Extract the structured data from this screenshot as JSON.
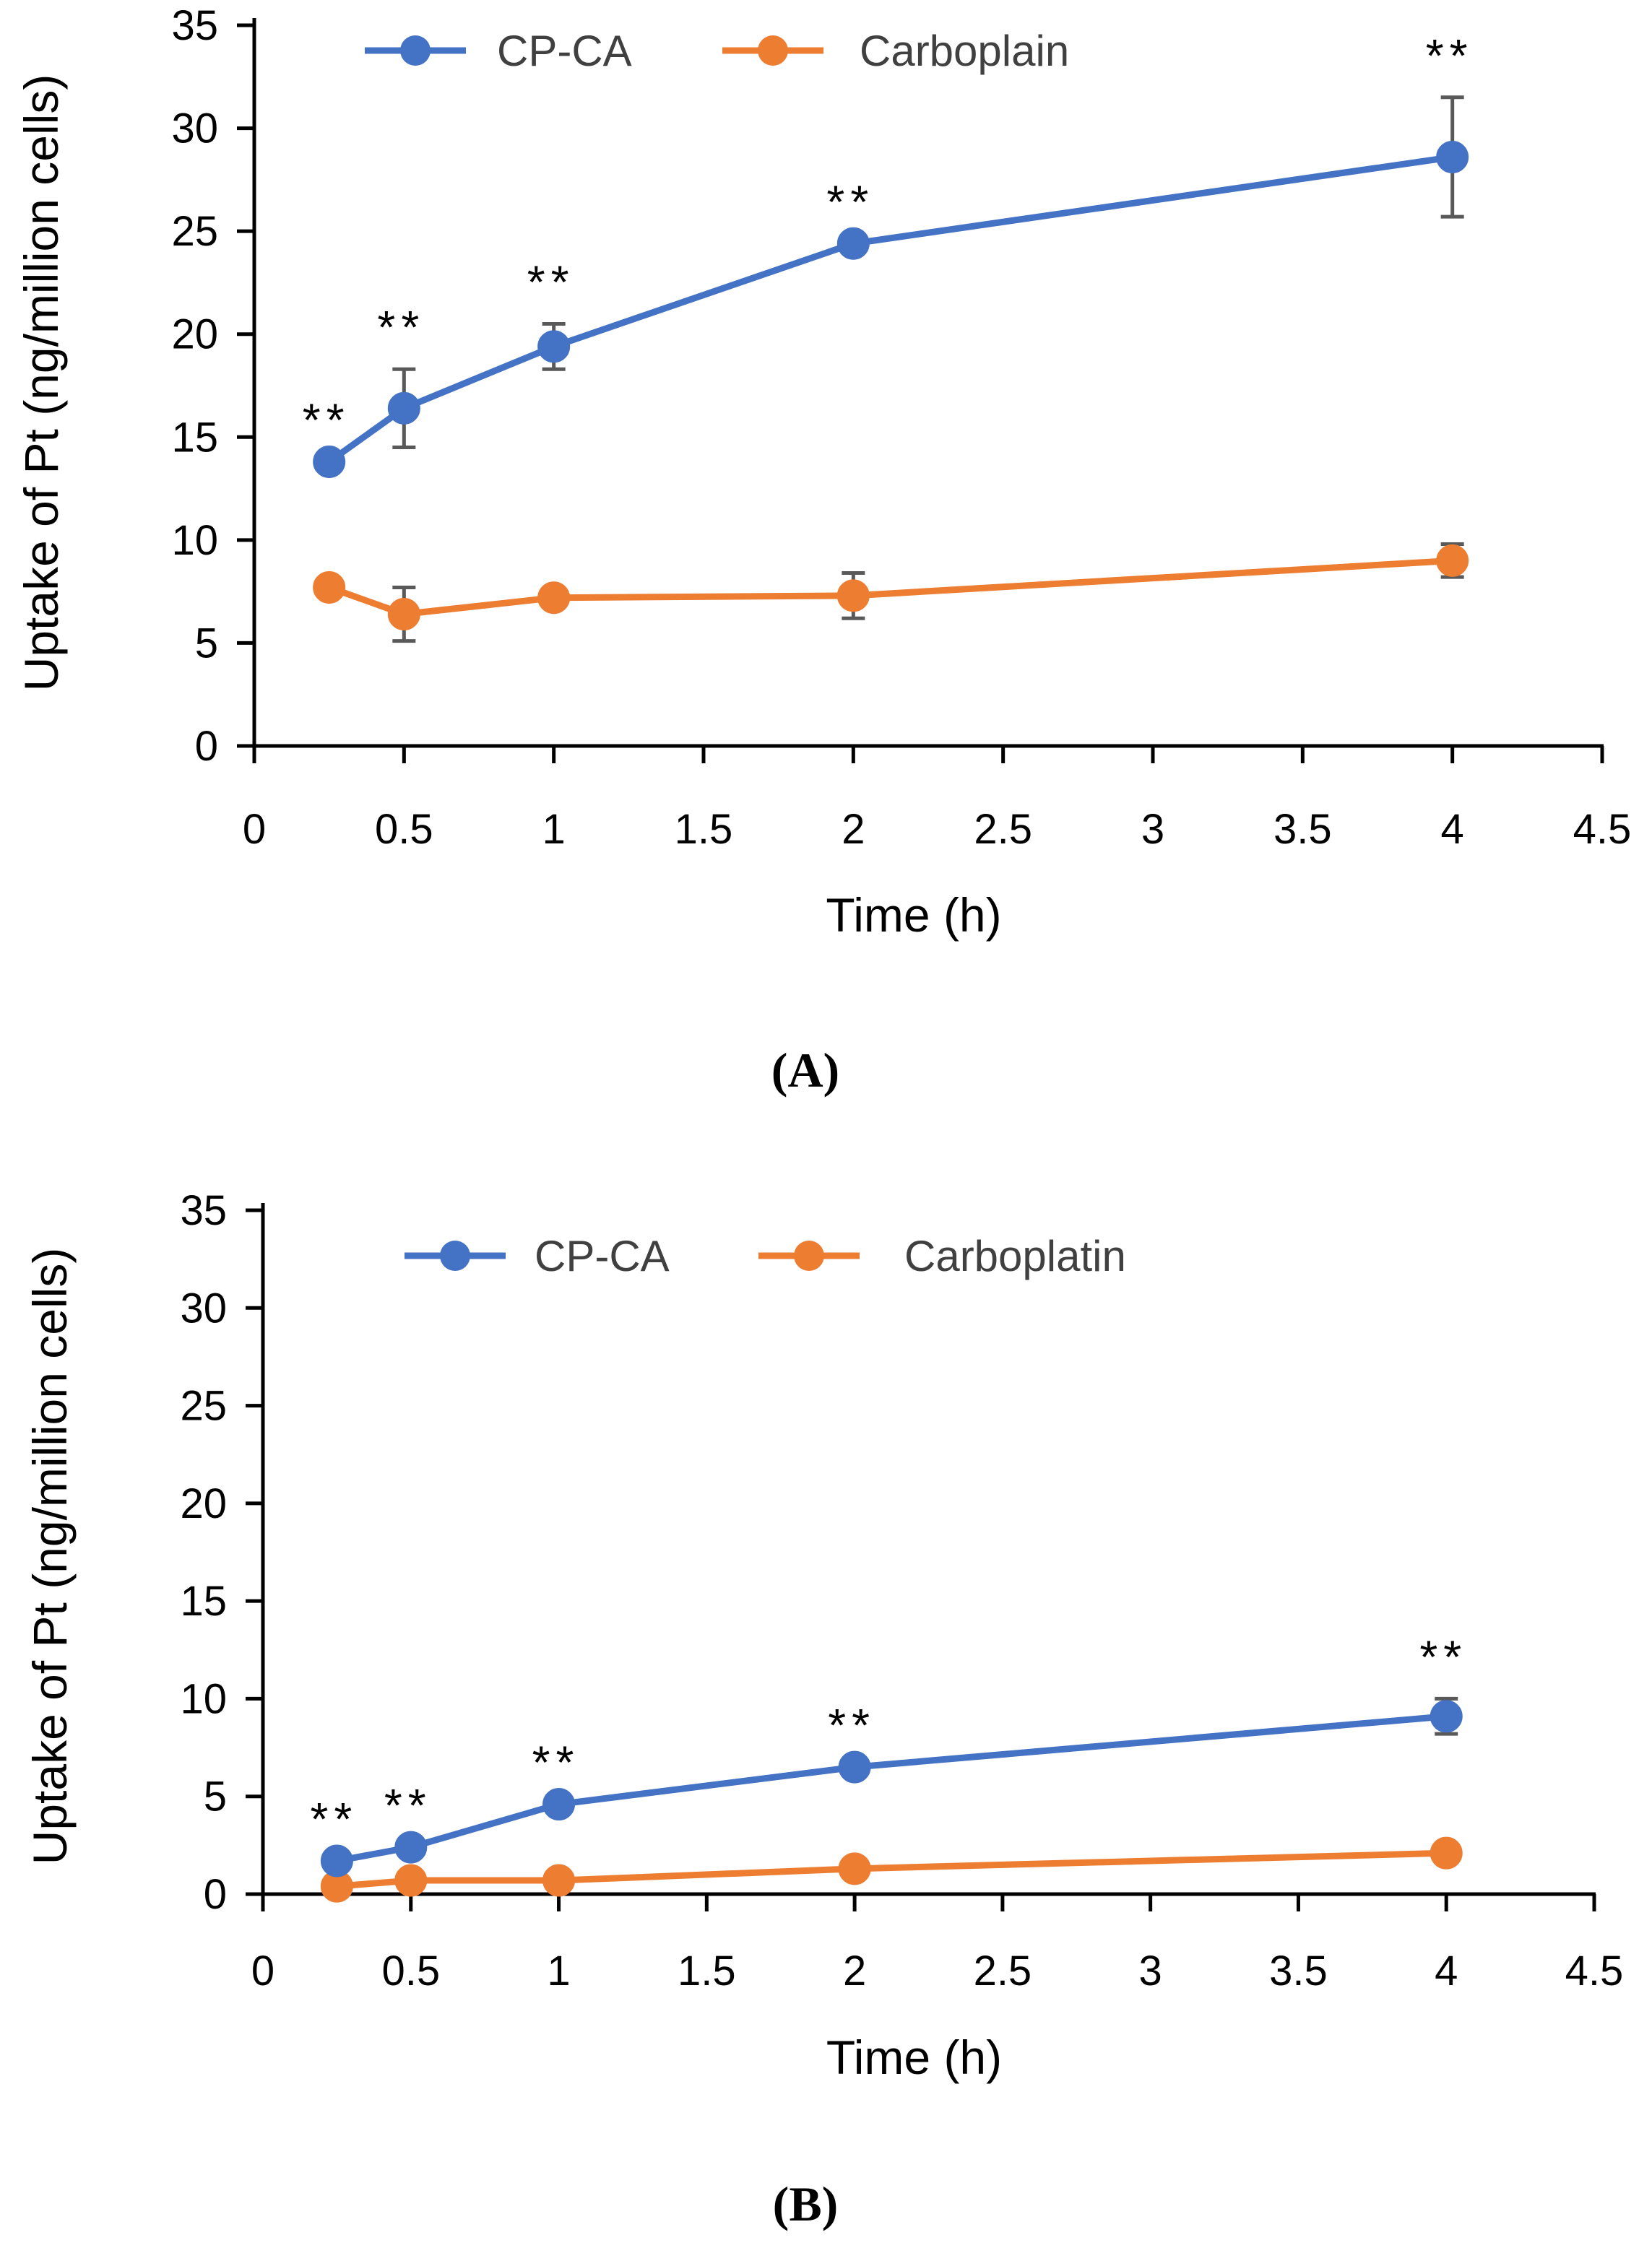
{
  "chart_data": [
    {
      "type": "line",
      "panel_label": "(A)",
      "xlabel": "Time (h)",
      "ylabel": "Uptake of Pt (ng/million cells)",
      "xlim": [
        0,
        4.5
      ],
      "ylim": [
        0,
        35
      ],
      "xticks": [
        "0",
        "0.5",
        "1",
        "1.5",
        "2",
        "2.5",
        "3",
        "3.5",
        "4",
        "4.5"
      ],
      "yticks": [
        "0",
        "5",
        "10",
        "15",
        "20",
        "25",
        "30",
        "35"
      ],
      "legend_position": "top",
      "series": [
        {
          "name": "CP-CA",
          "color": "#4472C4",
          "x": [
            0.25,
            0.5,
            1,
            2,
            4
          ],
          "y": [
            13.8,
            16.4,
            19.4,
            24.4,
            28.6
          ],
          "error": [
            0,
            1.9,
            1.1,
            0,
            2.9
          ],
          "annotations": [
            "**",
            "**",
            "**",
            "**",
            "**"
          ]
        },
        {
          "name": "Carboplain",
          "color": "#ED7D31",
          "x": [
            0.25,
            0.5,
            1,
            2,
            4
          ],
          "y": [
            7.7,
            6.4,
            7.2,
            7.3,
            9.0
          ],
          "error": [
            0,
            1.3,
            0,
            1.1,
            0.8
          ],
          "annotations": []
        }
      ]
    },
    {
      "type": "line",
      "panel_label": "(B)",
      "xlabel": "Time (h)",
      "ylabel": "Uptake of Pt (ng/million cells)",
      "xlim": [
        0,
        4.5
      ],
      "ylim": [
        0,
        35
      ],
      "xticks": [
        "0",
        "0.5",
        "1",
        "1.5",
        "2",
        "2.5",
        "3",
        "3.5",
        "4",
        "4.5"
      ],
      "yticks": [
        "0",
        "5",
        "10",
        "15",
        "20",
        "25",
        "30",
        "35"
      ],
      "legend_position": "top",
      "series": [
        {
          "name": "CP-CA",
          "color": "#4472C4",
          "x": [
            0.25,
            0.5,
            1,
            2,
            4
          ],
          "y": [
            1.7,
            2.4,
            4.6,
            6.5,
            9.1
          ],
          "error": [
            0,
            0,
            0,
            0,
            0.9
          ],
          "annotations": [
            "**",
            "**",
            "**",
            "**",
            "**"
          ]
        },
        {
          "name": "Carboplatin",
          "color": "#ED7D31",
          "x": [
            0.25,
            0.5,
            1,
            2,
            4
          ],
          "y": [
            0.4,
            0.7,
            0.7,
            1.3,
            2.1
          ],
          "error": [
            0,
            0,
            0,
            0,
            0
          ],
          "annotations": []
        }
      ]
    }
  ]
}
